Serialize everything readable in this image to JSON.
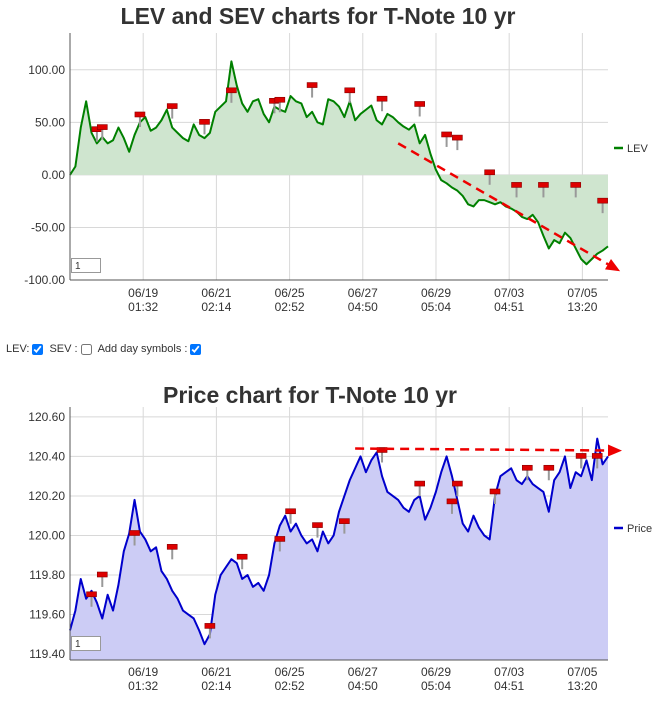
{
  "controls": {
    "lev_label": "LEV:",
    "sev_label": "SEV :",
    "day_symbols_label": "Add day symbols :",
    "lev_checked": true,
    "sev_checked": false,
    "day_checked": true
  },
  "chart_data": [
    {
      "type": "area",
      "title": "LEV and SEV charts for T-Note 10 yr",
      "ylim": [
        -100,
        135
      ],
      "yticks": [
        "100.00",
        "50.00",
        "0.00",
        "-50.00",
        "-100.00"
      ],
      "ytick_values": [
        100,
        50,
        0,
        -50,
        -100
      ],
      "xticks": [
        [
          "06/19",
          "01:32"
        ],
        [
          "06/21",
          "02:14"
        ],
        [
          "06/25",
          "02:52"
        ],
        [
          "06/27",
          "04:50"
        ],
        [
          "06/29",
          "05:04"
        ],
        [
          "07/03",
          "04:51"
        ],
        [
          "07/05",
          "13:20"
        ]
      ],
      "zoom_value": "1",
      "legend": [
        {
          "name": "LEV",
          "color": "#008000"
        }
      ],
      "line_color": "#008000",
      "fill_color": "#cfe5cf",
      "trend_color": "#ee0000",
      "x": [
        0,
        1,
        2,
        3,
        4,
        5,
        6,
        7,
        8,
        9,
        10,
        11,
        12,
        13,
        14,
        15,
        16,
        17,
        18,
        19,
        20,
        21,
        22,
        23,
        24,
        25,
        26,
        27,
        28,
        29,
        30,
        31,
        32,
        33,
        34,
        35,
        36,
        37,
        38,
        39,
        40,
        41,
        42,
        43,
        44,
        45,
        46,
        47,
        48,
        49,
        50,
        51,
        52,
        53,
        54,
        55,
        56,
        57,
        58,
        59,
        60,
        61,
        62,
        63,
        64,
        65,
        66,
        67,
        68,
        69,
        70,
        71,
        72,
        73,
        74,
        75,
        76,
        77,
        78,
        79,
        80,
        81,
        82,
        83,
        84,
        85,
        86,
        87,
        88,
        89,
        90,
        91,
        92,
        93,
        94,
        95,
        96,
        97,
        98,
        99,
        100
      ],
      "series": [
        {
          "name": "LEV",
          "values": [
            0,
            8,
            45,
            70,
            40,
            30,
            36,
            30,
            33,
            45,
            35,
            22,
            38,
            50,
            55,
            42,
            45,
            52,
            62,
            45,
            40,
            35,
            32,
            48,
            38,
            35,
            40,
            60,
            65,
            70,
            108,
            85,
            68,
            60,
            70,
            72,
            58,
            50,
            65,
            62,
            60,
            75,
            70,
            68,
            55,
            60,
            50,
            48,
            72,
            70,
            65,
            55,
            70,
            52,
            58,
            62,
            66,
            52,
            48,
            58,
            55,
            50,
            46,
            43,
            48,
            30,
            38,
            20,
            5,
            -5,
            -8,
            -12,
            -15,
            -20,
            -28,
            -30,
            -24,
            -24,
            -26,
            -28,
            -26,
            -30,
            -32,
            -35,
            -40,
            -42,
            -38,
            -45,
            -58,
            -70,
            -62,
            -65,
            -55,
            -60,
            -70,
            -80,
            -85,
            -80,
            -75,
            -72,
            -68
          ]
        }
      ],
      "trend": {
        "x": [
          61,
          100
        ],
        "y": [
          30,
          -85
        ]
      },
      "markers": [
        {
          "x": 5,
          "y": 43
        },
        {
          "x": 6,
          "y": 45
        },
        {
          "x": 13,
          "y": 57
        },
        {
          "x": 19,
          "y": 65
        },
        {
          "x": 25,
          "y": 50
        },
        {
          "x": 30,
          "y": 80
        },
        {
          "x": 38,
          "y": 70
        },
        {
          "x": 39,
          "y": 71
        },
        {
          "x": 45,
          "y": 85
        },
        {
          "x": 52,
          "y": 80
        },
        {
          "x": 58,
          "y": 72
        },
        {
          "x": 65,
          "y": 67
        },
        {
          "x": 70,
          "y": 38
        },
        {
          "x": 72,
          "y": 35
        },
        {
          "x": 78,
          "y": 2
        },
        {
          "x": 83,
          "y": -10
        },
        {
          "x": 88,
          "y": -10
        },
        {
          "x": 94,
          "y": -10
        },
        {
          "x": 99,
          "y": -25
        }
      ]
    },
    {
      "type": "area",
      "title": "Price chart for T-Note 10 yr",
      "ylim": [
        119.37,
        120.65
      ],
      "yticks": [
        "120.60",
        "120.40",
        "120.20",
        "120.00",
        "119.80",
        "119.60",
        "119.40"
      ],
      "ytick_values": [
        120.6,
        120.4,
        120.2,
        120.0,
        119.8,
        119.6,
        119.4
      ],
      "xticks": [
        [
          "06/19",
          "01:32"
        ],
        [
          "06/21",
          "02:14"
        ],
        [
          "06/25",
          "02:52"
        ],
        [
          "06/27",
          "04:50"
        ],
        [
          "06/29",
          "05:04"
        ],
        [
          "07/03",
          "04:51"
        ],
        [
          "07/05",
          "13:20"
        ]
      ],
      "zoom_value": "1",
      "legend": [
        {
          "name": "Price",
          "color": "#0000cc"
        }
      ],
      "line_color": "#0000cc",
      "fill_color": "#ccccf5",
      "trend_color": "#ee0000",
      "x": [
        0,
        1,
        2,
        3,
        4,
        5,
        6,
        7,
        8,
        9,
        10,
        11,
        12,
        13,
        14,
        15,
        16,
        17,
        18,
        19,
        20,
        21,
        22,
        23,
        24,
        25,
        26,
        27,
        28,
        29,
        30,
        31,
        32,
        33,
        34,
        35,
        36,
        37,
        38,
        39,
        40,
        41,
        42,
        43,
        44,
        45,
        46,
        47,
        48,
        49,
        50,
        51,
        52,
        53,
        54,
        55,
        56,
        57,
        58,
        59,
        60,
        61,
        62,
        63,
        64,
        65,
        66,
        67,
        68,
        69,
        70,
        71,
        72,
        73,
        74,
        75,
        76,
        77,
        78,
        79,
        80,
        81,
        82,
        83,
        84,
        85,
        86,
        87,
        88,
        89,
        90,
        91,
        92,
        93,
        94,
        95,
        96,
        97,
        98,
        99,
        100
      ],
      "series": [
        {
          "name": "Price",
          "values": [
            119.52,
            119.62,
            119.78,
            119.68,
            119.72,
            119.66,
            119.58,
            119.7,
            119.62,
            119.75,
            119.92,
            120.01,
            120.18,
            120.02,
            119.98,
            119.92,
            119.94,
            119.82,
            119.78,
            119.72,
            119.68,
            119.62,
            119.6,
            119.58,
            119.52,
            119.45,
            119.5,
            119.7,
            119.8,
            119.84,
            119.88,
            119.86,
            119.78,
            119.8,
            119.74,
            119.76,
            119.72,
            119.8,
            119.96,
            120.05,
            120.1,
            120.02,
            120.06,
            120.0,
            119.96,
            119.98,
            119.92,
            120.02,
            119.96,
            120.0,
            120.12,
            120.2,
            120.28,
            120.34,
            120.4,
            120.32,
            120.38,
            120.42,
            120.3,
            120.22,
            120.2,
            120.18,
            120.14,
            120.12,
            120.18,
            120.2,
            120.08,
            120.14,
            120.22,
            120.32,
            120.4,
            120.3,
            120.18,
            120.06,
            120.02,
            120.1,
            120.04,
            120.0,
            119.98,
            120.2,
            120.3,
            120.32,
            120.34,
            120.28,
            120.26,
            120.3,
            120.26,
            120.24,
            120.22,
            120.12,
            120.28,
            120.32,
            120.4,
            120.24,
            120.32,
            120.3,
            120.38,
            120.28,
            120.49,
            120.36,
            120.4
          ]
        }
      ],
      "trend": {
        "x": [
          53,
          100
        ],
        "y": [
          120.44,
          120.43
        ]
      },
      "markers": [
        {
          "x": 4,
          "y": 119.7
        },
        {
          "x": 6,
          "y": 119.8
        },
        {
          "x": 12,
          "y": 120.01
        },
        {
          "x": 19,
          "y": 119.94
        },
        {
          "x": 26,
          "y": 119.54
        },
        {
          "x": 32,
          "y": 119.89
        },
        {
          "x": 39,
          "y": 119.98
        },
        {
          "x": 41,
          "y": 120.12
        },
        {
          "x": 46,
          "y": 120.05
        },
        {
          "x": 51,
          "y": 120.07
        },
        {
          "x": 58,
          "y": 120.43
        },
        {
          "x": 65,
          "y": 120.26
        },
        {
          "x": 71,
          "y": 120.17
        },
        {
          "x": 72,
          "y": 120.26
        },
        {
          "x": 79,
          "y": 120.22
        },
        {
          "x": 85,
          "y": 120.34
        },
        {
          "x": 89,
          "y": 120.34
        },
        {
          "x": 95,
          "y": 120.4
        },
        {
          "x": 98,
          "y": 120.4
        }
      ]
    }
  ]
}
